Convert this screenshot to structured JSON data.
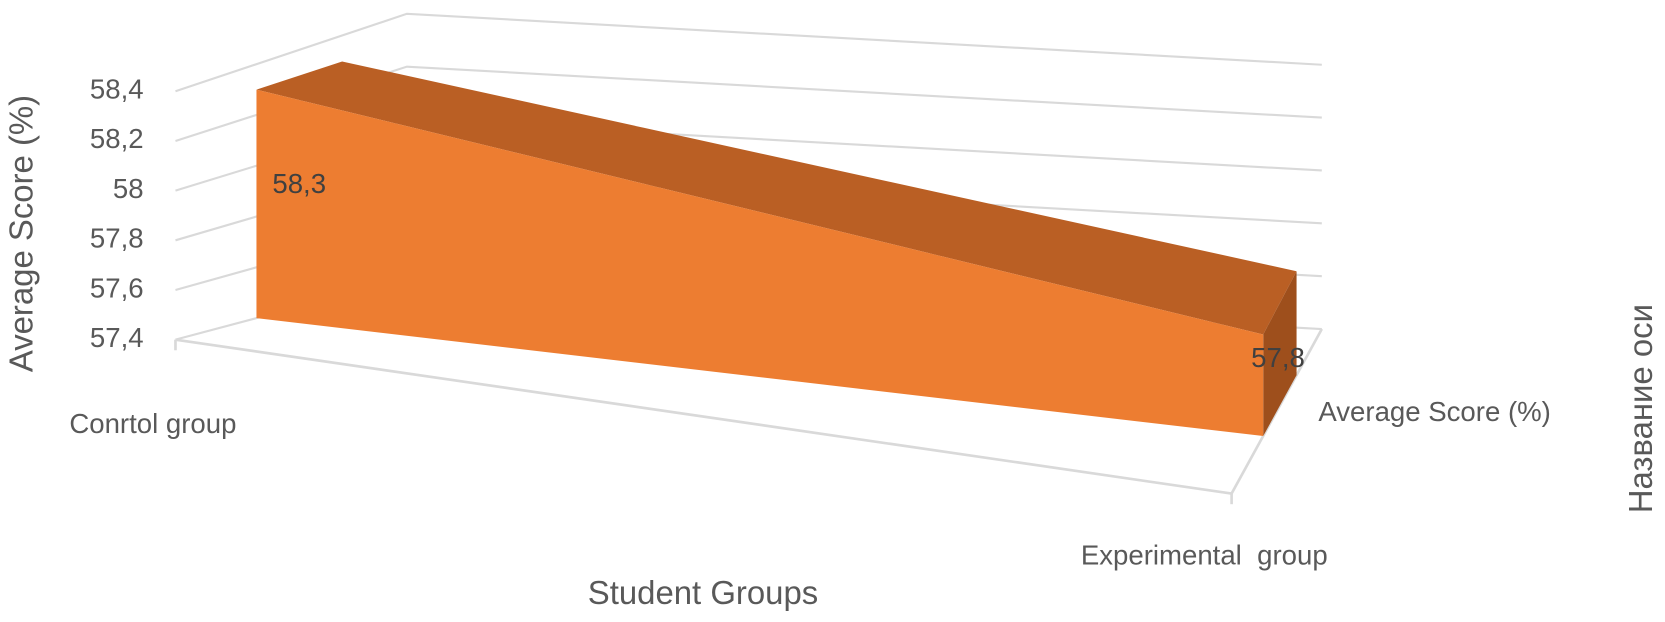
{
  "chart_data": {
    "type": "area3d",
    "y_label": "Average Score (%)",
    "x_label": "Student Groups",
    "z_label": "Название оси",
    "categories": [
      "Conrtol group",
      "Experimental  group"
    ],
    "series": [
      {
        "name": "Average Score (%)",
        "color": "#ED7D31",
        "values": [
          58.3,
          57.8
        ],
        "value_labels": [
          "58,3",
          "57,8"
        ]
      }
    ],
    "ylim": [
      57.4,
      58.4
    ],
    "yticks": [
      {
        "value": 57.4,
        "label": "57,4"
      },
      {
        "value": 57.6,
        "label": "57,6"
      },
      {
        "value": 57.8,
        "label": "57,8"
      },
      58,
      {
        "value": 58.2,
        "label": "58,2"
      },
      {
        "value": 58.4,
        "label": "58,4"
      }
    ],
    "grid": true
  }
}
